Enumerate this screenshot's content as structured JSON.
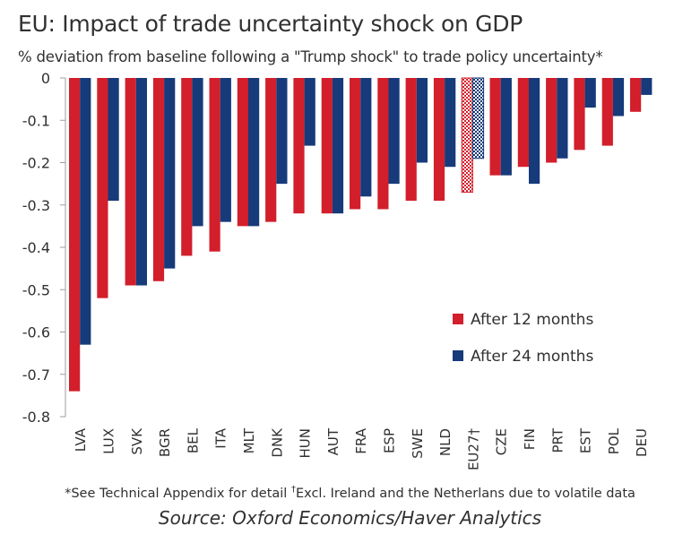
{
  "title": "EU: Impact of trade uncertainty shock on GDP",
  "subtitle": "% deviation from baseline following a \"Trump shock\" to trade policy uncertainty*",
  "footnote_main": "*See Technical Appendix for detail ",
  "footnote_dagger": "†",
  "footnote_rest": "Excl. Ireland and the Netherlans due to volatile data",
  "source": "Source: Oxford Economics/Haver Analytics",
  "colors": {
    "series_12": "#d21f2b",
    "series_24": "#163a7a",
    "axis": "#9e9e9e",
    "text": "#303030"
  },
  "chart_data": {
    "type": "bar",
    "title": "EU: Impact of trade uncertainty shock on GDP",
    "ylabel": "% deviation from baseline",
    "ylim": [
      -0.8,
      0
    ],
    "yticks": [
      0,
      -0.1,
      -0.2,
      -0.3,
      -0.4,
      -0.5,
      -0.6,
      -0.7,
      -0.8
    ],
    "ytick_labels": [
      "0",
      "-0.1",
      "-0.2",
      "-0.3",
      "-0.4",
      "-0.5",
      "-0.6",
      "-0.7",
      "-0.8"
    ],
    "categories": [
      "LVA",
      "LUX",
      "SVK",
      "BGR",
      "BEL",
      "ITA",
      "MLT",
      "DNK",
      "HUN",
      "AUT",
      "FRA",
      "ESP",
      "SWE",
      "NLD",
      "EU27†",
      "CZE",
      "FIN",
      "PRT",
      "EST",
      "POL",
      "DEU"
    ],
    "highlight_category": "EU27†",
    "legend_position": "right",
    "series": [
      {
        "name": "After 12 months",
        "values": [
          -0.74,
          -0.52,
          -0.49,
          -0.48,
          -0.42,
          -0.41,
          -0.35,
          -0.34,
          -0.32,
          -0.32,
          -0.31,
          -0.31,
          -0.29,
          -0.29,
          -0.27,
          -0.23,
          -0.21,
          -0.2,
          -0.17,
          -0.16,
          -0.08
        ]
      },
      {
        "name": "After 24 months",
        "values": [
          -0.63,
          -0.29,
          -0.49,
          -0.45,
          -0.35,
          -0.34,
          -0.35,
          -0.25,
          -0.16,
          -0.32,
          -0.28,
          -0.25,
          -0.2,
          -0.21,
          -0.19,
          -0.23,
          -0.25,
          -0.19,
          -0.07,
          -0.09,
          -0.04
        ]
      }
    ]
  }
}
